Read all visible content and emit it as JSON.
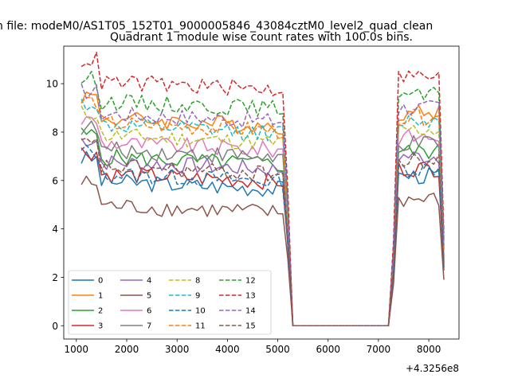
{
  "figure": {
    "suptitle": "n file: modeM0/AS1T05_152T01_9000005846_43084cztM0_level2_quad_clean"
  },
  "chart_data": {
    "type": "line",
    "title": "Quadrant 1 module wise count rates with 100.0s bins.",
    "xlabel": "",
    "ylabel": "",
    "x_offset_label": "+4.3256e8",
    "xlim": [
      750,
      8600
    ],
    "ylim": [
      -0.55,
      11.55
    ],
    "x_ticks": [
      1000,
      2000,
      3000,
      4000,
      5000,
      6000,
      7000,
      8000
    ],
    "y_ticks": [
      0,
      2,
      4,
      6,
      8,
      10
    ],
    "grid": false,
    "legend": {
      "position": "lower-left",
      "columns": 4
    },
    "series": [
      {
        "name": "0",
        "color": "#1f77b4",
        "dash": "solid",
        "level": 6.0
      },
      {
        "name": "1",
        "color": "#ff7f0e",
        "dash": "solid",
        "level": 8.6
      },
      {
        "name": "2",
        "color": "#2ca02c",
        "dash": "solid",
        "level": 7.0
      },
      {
        "name": "3",
        "color": "#d62728",
        "dash": "solid",
        "level": 6.3
      },
      {
        "name": "4",
        "color": "#9467bd",
        "dash": "solid",
        "level": 6.8
      },
      {
        "name": "5",
        "color": "#8c564b",
        "dash": "solid",
        "level": 5.0
      },
      {
        "name": "6",
        "color": "#e377c2",
        "dash": "solid",
        "level": 7.6
      },
      {
        "name": "7",
        "color": "#7f7f7f",
        "dash": "solid",
        "level": 7.3
      },
      {
        "name": "8",
        "color": "#bcbd22",
        "dash": "dashed",
        "level": 7.9
      },
      {
        "name": "9",
        "color": "#17becf",
        "dash": "dashed",
        "level": 8.3
      },
      {
        "name": "10",
        "color": "#1f77b4",
        "dash": "dashed",
        "level": 6.3
      },
      {
        "name": "11",
        "color": "#ff7f0e",
        "dash": "dashed",
        "level": 8.4
      },
      {
        "name": "12",
        "color": "#2ca02c",
        "dash": "dashed",
        "level": 9.3
      },
      {
        "name": "13",
        "color": "#d62728",
        "dash": "dashed",
        "level": 10.1
      },
      {
        "name": "14",
        "color": "#9467bd",
        "dash": "dashed",
        "level": 8.8
      },
      {
        "name": "15",
        "color": "#8c564b",
        "dash": "dashed",
        "level": 6.6
      }
    ],
    "x": [
      1100,
      1200,
      1300,
      1400,
      1500,
      1600,
      1700,
      1800,
      1900,
      2000,
      2100,
      2200,
      2300,
      2400,
      2500,
      2600,
      2700,
      2800,
      2900,
      3000,
      3100,
      3200,
      3300,
      3400,
      3500,
      3600,
      3700,
      3800,
      3900,
      4000,
      4100,
      4200,
      4300,
      4400,
      4500,
      4600,
      4700,
      4800,
      4900,
      5000,
      5100,
      5200,
      5300,
      6300,
      7200,
      7300,
      7400,
      7500,
      7600,
      7700,
      7800,
      7900,
      8000,
      8100,
      8200,
      8300
    ]
  }
}
